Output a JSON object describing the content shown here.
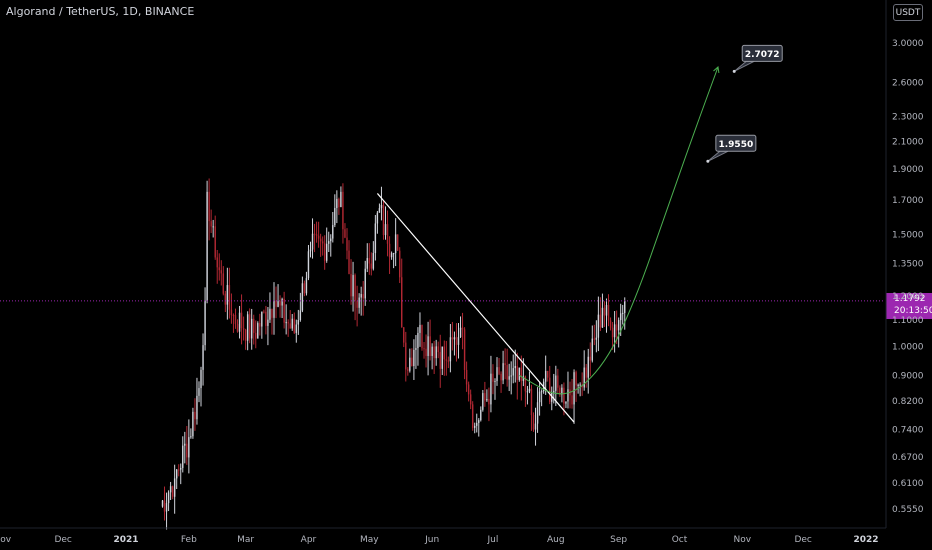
{
  "header": {
    "title": "Algorand / TetherUS, 1D, BINANCE"
  },
  "price_axis": {
    "currency": "USDT",
    "last_price": "1.1792",
    "countdown": "20:13:50"
  },
  "colors": {
    "background": "#000000",
    "up_candle": "#d1d4dc",
    "down_candle": "#b22833",
    "trendline": "#ffffff",
    "curve": "#4caf50",
    "last_price_line": "#9c27b0",
    "axis_text": "#b2b5be"
  },
  "chart_data": {
    "type": "candlestick",
    "title": "Algorand / TetherUS, 1D, BINANCE",
    "y_scale": "log",
    "ylim": [
      0.53,
      3.6
    ],
    "y_ticks": [
      3.0,
      2.6,
      2.3,
      2.1,
      1.9,
      1.7,
      1.5,
      1.35,
      1.2,
      1.1,
      1.0,
      0.9,
      0.82,
      0.74,
      0.67,
      0.61,
      0.555
    ],
    "y_tick_labels": [
      "3.0000",
      "2.6000",
      "2.3000",
      "2.1000",
      "1.9000",
      "1.7000",
      "1.5000",
      "1.3500",
      "1.2000",
      "1.1000",
      "1.0000",
      "0.9000",
      "0.8200",
      "0.7400",
      "0.6700",
      "0.6100",
      "0.5550"
    ],
    "x_ticks": [
      "Nov",
      "Dec",
      "2021",
      "Feb",
      "Mar",
      "Apr",
      "May",
      "Jun",
      "Jul",
      "Aug",
      "Sep",
      "Oct",
      "Nov",
      "Dec",
      "2022"
    ],
    "last_price": 1.1792,
    "ohlc_anchors": [
      {
        "date": "2021-01-18",
        "close": 0.56
      },
      {
        "date": "2021-01-25",
        "close": 0.62
      },
      {
        "date": "2021-02-01",
        "close": 0.72
      },
      {
        "date": "2021-02-06",
        "close": 0.86
      },
      {
        "date": "2021-02-09",
        "close": 1.18
      },
      {
        "date": "2021-02-10",
        "close": 1.75
      },
      {
        "date": "2021-02-14",
        "close": 1.38
      },
      {
        "date": "2021-02-22",
        "close": 1.12
      },
      {
        "date": "2021-03-05",
        "close": 1.05
      },
      {
        "date": "2021-03-15",
        "close": 1.18
      },
      {
        "date": "2021-03-25",
        "close": 1.05
      },
      {
        "date": "2021-04-02",
        "close": 1.42
      },
      {
        "date": "2021-04-10",
        "close": 1.45
      },
      {
        "date": "2021-04-17",
        "close": 1.75
      },
      {
        "date": "2021-04-21",
        "close": 1.3
      },
      {
        "date": "2021-04-25",
        "close": 1.15
      },
      {
        "date": "2021-05-01",
        "close": 1.35
      },
      {
        "date": "2021-05-06",
        "close": 1.65
      },
      {
        "date": "2021-05-10",
        "close": 1.45
      },
      {
        "date": "2021-05-14",
        "close": 1.5
      },
      {
        "date": "2021-05-19",
        "close": 0.92
      },
      {
        "date": "2021-05-25",
        "close": 1.05
      },
      {
        "date": "2021-06-03",
        "close": 1.0
      },
      {
        "date": "2021-06-08",
        "close": 0.95
      },
      {
        "date": "2021-06-15",
        "close": 1.07
      },
      {
        "date": "2021-06-22",
        "close": 0.75
      },
      {
        "date": "2021-07-01",
        "close": 0.88
      },
      {
        "date": "2021-07-10",
        "close": 0.9
      },
      {
        "date": "2021-07-18",
        "close": 0.85
      },
      {
        "date": "2021-07-21",
        "close": 0.74
      },
      {
        "date": "2021-07-26",
        "close": 0.88
      },
      {
        "date": "2021-08-03",
        "close": 0.84
      },
      {
        "date": "2021-08-12",
        "close": 0.87
      },
      {
        "date": "2021-08-18",
        "close": 0.95
      },
      {
        "date": "2021-08-24",
        "close": 1.15
      },
      {
        "date": "2021-08-28",
        "close": 1.07
      },
      {
        "date": "2021-09-01",
        "close": 1.1
      },
      {
        "date": "2021-09-04",
        "close": 1.1792
      }
    ],
    "annotations": [
      {
        "type": "trendline",
        "from": {
          "date": "2021-05-05",
          "price": 1.74
        },
        "to": {
          "date": "2021-08-10",
          "price": 0.76
        }
      },
      {
        "type": "curve",
        "points": [
          {
            "date": "2021-07-14",
            "price": 0.9
          },
          {
            "date": "2021-08-05",
            "price": 0.82
          },
          {
            "date": "2021-08-25",
            "price": 0.93
          },
          {
            "date": "2021-09-10",
            "price": 1.2
          },
          {
            "date": "2021-09-25",
            "price": 1.65
          },
          {
            "date": "2021-10-10",
            "price": 2.25
          },
          {
            "date": "2021-10-20",
            "price": 2.75
          }
        ]
      },
      {
        "type": "callout",
        "label": "2.7072",
        "date": "2021-10-28",
        "price": 2.7072
      },
      {
        "type": "callout",
        "label": "1.9550",
        "date": "2021-10-15",
        "price": 1.955
      }
    ]
  }
}
